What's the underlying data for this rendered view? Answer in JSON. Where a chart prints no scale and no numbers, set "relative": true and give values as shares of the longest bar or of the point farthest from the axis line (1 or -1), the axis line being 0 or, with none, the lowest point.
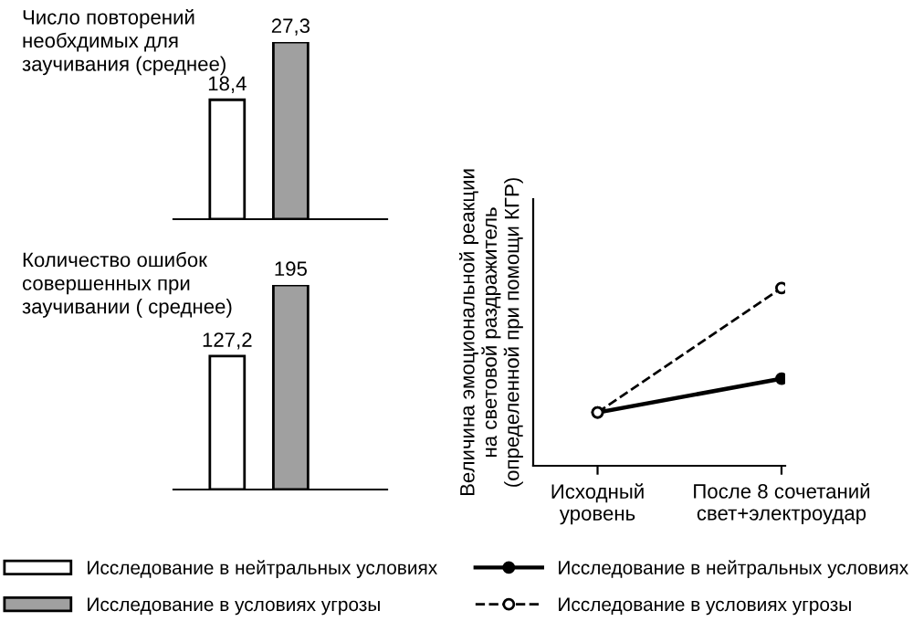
{
  "chart_data": [
    {
      "type": "bar",
      "title": "Число повторений\nнеобхдимых для\nзаучивания (среднее)",
      "categories": [
        null
      ],
      "legend": "bottom",
      "series": [
        {
          "name": "Исследование в нейтральных условиях",
          "color": "#ffffff",
          "values": [
            18.4
          ],
          "value_labels": [
            "18,4"
          ]
        },
        {
          "name": "Исследование в условиях угрозы",
          "color": "#a0a0a0",
          "values": [
            27.3
          ],
          "value_labels": [
            "27,3"
          ]
        }
      ]
    },
    {
      "type": "bar",
      "title": "Количество ошибок\nсовершенных при\nзаучивании ( среднее)",
      "categories": [
        null
      ],
      "series": [
        {
          "color": "#ffffff",
          "values": [
            127.2
          ],
          "value_labels": [
            "127,2"
          ]
        },
        {
          "color": "#a0a0a0",
          "values": [
            195
          ],
          "value_labels": [
            "195"
          ]
        }
      ]
    },
    {
      "type": "line",
      "ylabel": "Величина эмоциональной реакции\nна световой раздражитель\n(определенной при помощи КГР)",
      "categories": [
        "Исходный\nуровень",
        "После 8 сочетаний\nсвет+электроудар"
      ],
      "relative": true,
      "legend": "bottom",
      "series": [
        {
          "name": "Исследование в нейтральных условиях",
          "color": "#000000",
          "values": [
            0.3,
            0.49
          ],
          "marker": "circle",
          "line_style": "solid"
        },
        {
          "name": "Исследование в условиях угрозы",
          "color": "#000000",
          "values": [
            0.3,
            1.0
          ],
          "marker": "circle",
          "line_style": "dashed"
        }
      ]
    }
  ]
}
